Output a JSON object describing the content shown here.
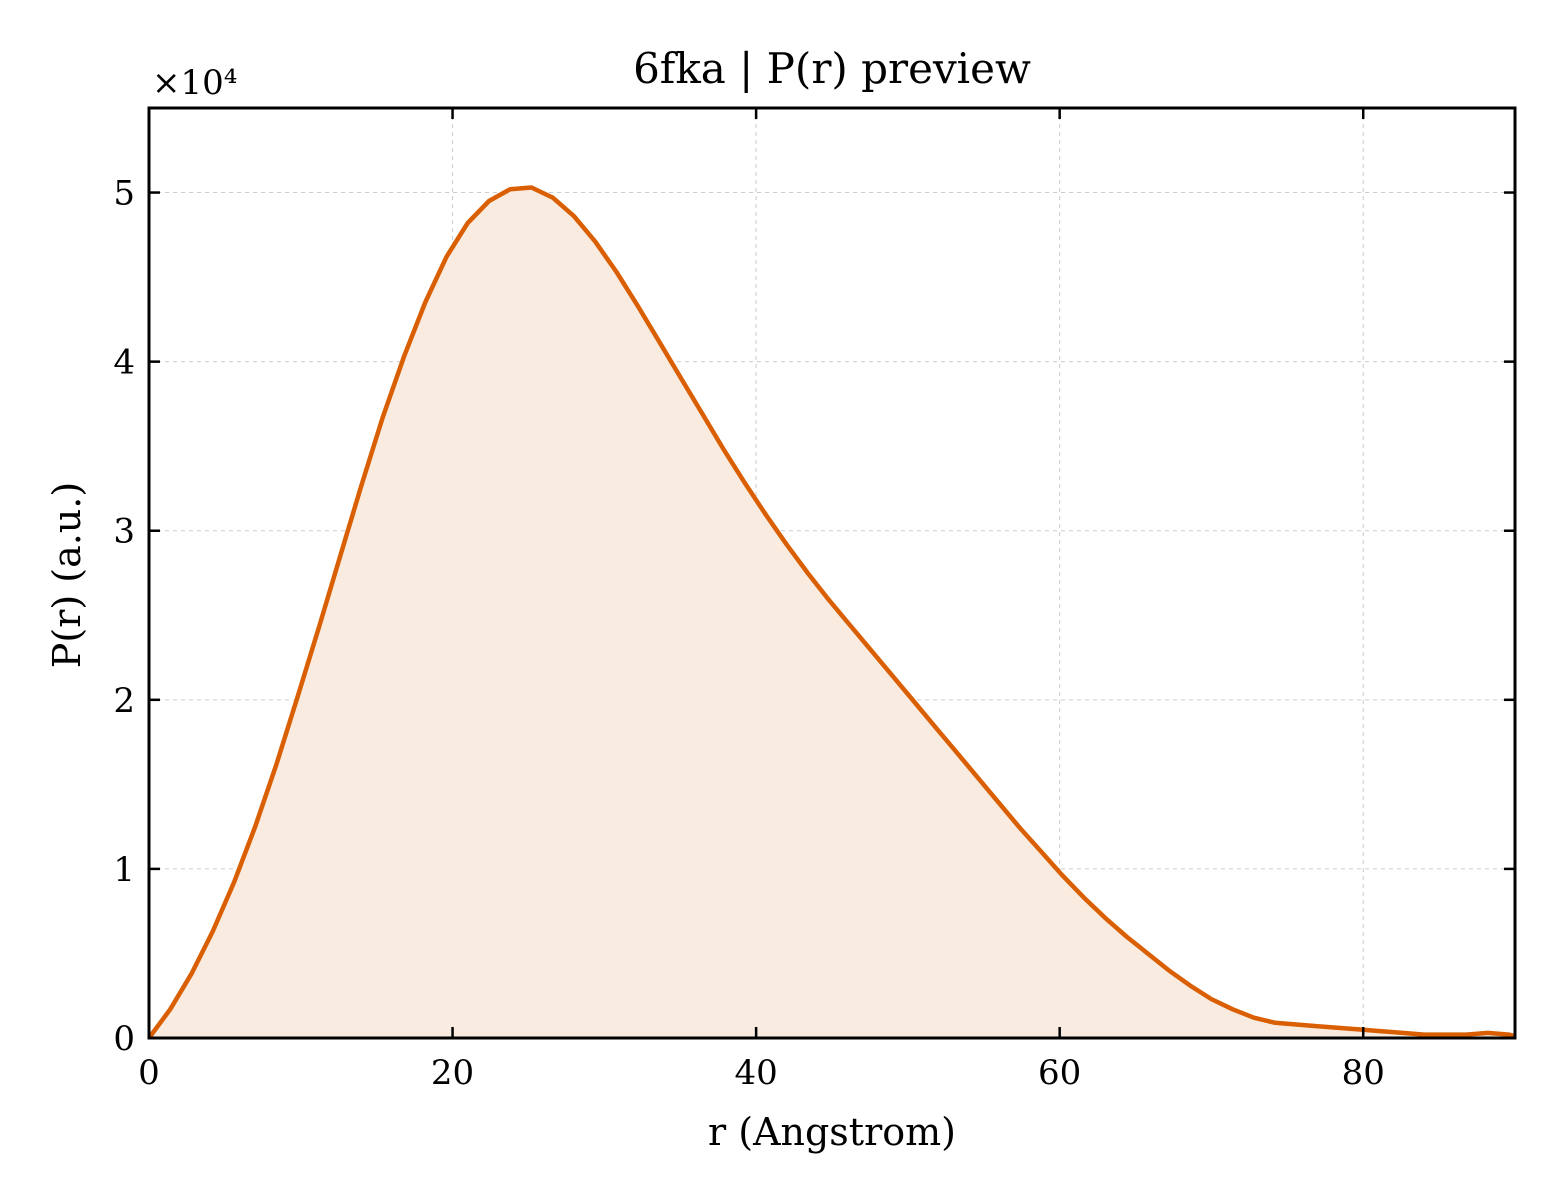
{
  "chart_data": {
    "type": "area",
    "title": "6fka | P(r) preview",
    "xlabel": "r (Angstrom)",
    "ylabel": "P(r) (a.u.)",
    "y_offset_text": "×10⁴",
    "xlim": [
      0,
      90
    ],
    "ylim": [
      0,
      5.5
    ],
    "y_scale_factor": 10000,
    "grid": true,
    "x_ticks": [
      0,
      20,
      40,
      60,
      80
    ],
    "y_ticks": [
      0,
      1,
      2,
      3,
      4,
      5
    ],
    "x_tick_labels": [
      "0",
      "20",
      "40",
      "60",
      "80"
    ],
    "y_tick_labels": [
      "0",
      "1",
      "2",
      "3",
      "4",
      "5"
    ],
    "line_color": "#d95f02",
    "fill_color": "#f9ebe0",
    "series": [
      {
        "x": [
          0,
          1.4,
          2.8,
          4.2,
          5.6,
          7.0,
          8.4,
          9.8,
          11.2,
          12.6,
          14.0,
          15.4,
          16.8,
          18.2,
          19.6,
          21.0,
          22.4,
          23.8,
          25.2,
          26.6,
          28.0,
          29.4,
          30.8,
          32.2,
          33.6,
          35.0,
          36.4,
          37.8,
          39.2,
          40.6,
          42.0,
          43.4,
          44.8,
          46.2,
          47.6,
          49.0,
          50.4,
          51.8,
          53.2,
          54.6,
          56.0,
          57.4,
          58.8,
          60.2,
          61.6,
          63.0,
          64.4,
          65.8,
          67.2,
          68.6,
          70.0,
          71.4,
          72.8,
          74.2,
          75.6,
          77.0,
          78.4,
          79.8,
          81.2,
          82.6,
          84.0,
          85.4,
          86.8,
          88.2,
          89.6,
          90.0
        ],
        "y": [
          0.0,
          0.17,
          0.38,
          0.63,
          0.92,
          1.25,
          1.62,
          2.02,
          2.43,
          2.85,
          3.27,
          3.67,
          4.03,
          4.35,
          4.62,
          4.82,
          4.95,
          5.02,
          5.03,
          4.97,
          4.86,
          4.71,
          4.53,
          4.33,
          4.12,
          3.91,
          3.7,
          3.49,
          3.29,
          3.1,
          2.92,
          2.75,
          2.59,
          2.44,
          2.29,
          2.14,
          1.99,
          1.84,
          1.69,
          1.54,
          1.39,
          1.24,
          1.1,
          0.96,
          0.83,
          0.71,
          0.6,
          0.5,
          0.4,
          0.31,
          0.23,
          0.17,
          0.12,
          0.09,
          0.08,
          0.07,
          0.06,
          0.05,
          0.04,
          0.03,
          0.02,
          0.02,
          0.02,
          0.03,
          0.02,
          0.01
        ]
      }
    ]
  }
}
